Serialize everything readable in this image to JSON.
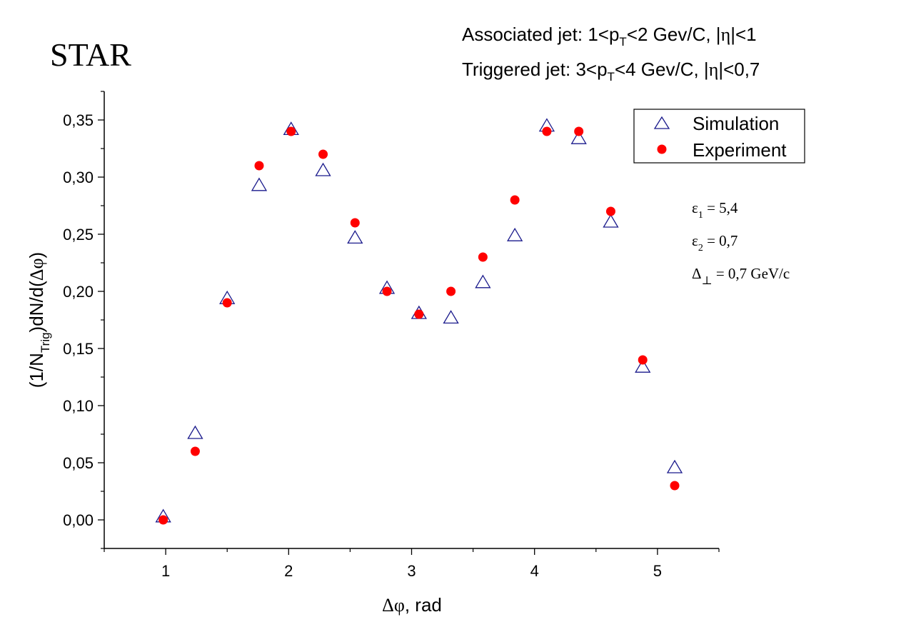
{
  "chart_data": {
    "type": "scatter",
    "logo": "STAR",
    "header": {
      "line1": {
        "prefix": "Associated jet: 1<p",
        "sub": "T",
        "mid": "<2 Gev/C, |",
        "greek": "η",
        "suffix": "|<1"
      },
      "line2": {
        "prefix": "Triggered jet: 3<p",
        "sub": "T",
        "mid": "<4 Gev/C, |",
        "greek": "η",
        "suffix": "|<0,7"
      }
    },
    "xlabel": {
      "greek": "Δφ",
      "text": ", rad"
    },
    "ylabel": {
      "prefix": "(1/N",
      "sub": "Trig",
      "mid": ")dN/d(",
      "greek": "Δφ",
      "suffix": ")"
    },
    "xlim": [
      0.5,
      5.5
    ],
    "ylim": [
      -0.025,
      0.375
    ],
    "xticks": [
      "1",
      "2",
      "3",
      "4",
      "5"
    ],
    "xtick_values": [
      1,
      2,
      3,
      4,
      5
    ],
    "ytick_values": [
      0,
      0.05,
      0.1,
      0.15,
      0.2,
      0.25,
      0.3,
      0.35
    ],
    "yticks": [
      "0,00",
      "0,05",
      "0,10",
      "0,15",
      "0,20",
      "0,25",
      "0,30",
      "0,35"
    ],
    "grid": false,
    "legend_position": "top-right",
    "series": [
      {
        "name": "Simulation",
        "marker": "open-triangle",
        "color": "#1a1a8c",
        "x": [
          0.98,
          1.24,
          1.5,
          1.76,
          2.02,
          2.28,
          2.54,
          2.8,
          3.06,
          3.32,
          3.58,
          3.84,
          4.1,
          4.36,
          4.62,
          4.88,
          5.14
        ],
        "y": [
          0.002,
          0.075,
          0.193,
          0.292,
          0.341,
          0.305,
          0.246,
          0.202,
          0.18,
          0.176,
          0.207,
          0.248,
          0.344,
          0.333,
          0.26,
          0.133,
          0.045
        ]
      },
      {
        "name": "Experiment",
        "marker": "filled-circle",
        "color": "#ff0000",
        "x": [
          0.98,
          1.24,
          1.5,
          1.76,
          2.02,
          2.28,
          2.54,
          2.8,
          3.06,
          3.32,
          3.58,
          3.84,
          4.1,
          4.36,
          4.62,
          4.88,
          5.14
        ],
        "y": [
          0.0,
          0.06,
          0.19,
          0.31,
          0.34,
          0.32,
          0.26,
          0.2,
          0.18,
          0.2,
          0.23,
          0.28,
          0.34,
          0.34,
          0.27,
          0.14,
          0.03
        ]
      }
    ],
    "annotations": [
      {
        "greek": "ε",
        "sub": "1",
        "text": " = 5,4"
      },
      {
        "greek": "ε",
        "sub": "2",
        "text": " = 0,7"
      },
      {
        "greek": "Δ",
        "sub": "⊥",
        "text": " = 0,7 GeV/c"
      }
    ]
  }
}
